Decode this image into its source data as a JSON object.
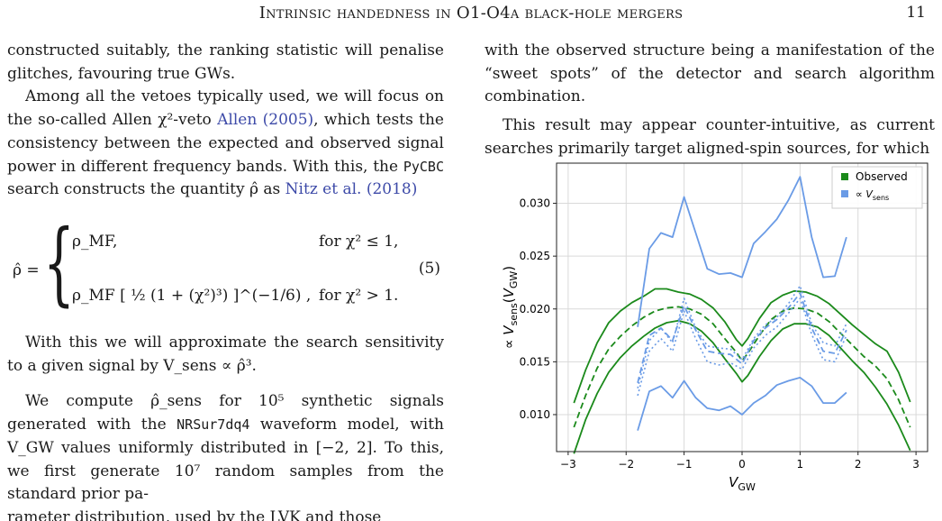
{
  "header": {
    "title": "Intrinsic handedness in O1-O4a black-hole mergers",
    "page_number": "11"
  },
  "left_column": {
    "p1": "constructed suitably, the ranking statistic will penalise glitches, favouring true GWs.",
    "p2_a": "Among all the vetoes typically used, we will focus on the so-called Allen χ²-veto ",
    "p2_cite": "Allen (2005)",
    "p2_b": ", which tests the consistency between the expected and observed signal power in different frequency bands. With this, the ",
    "p2_code": "PyCBC",
    "p2_c": " search constructs the quantity ρ̂ as ",
    "p2_cite2": "Nitz et al. (2018)",
    "equation": {
      "lhs": "ρ̂ =",
      "case1": "ρ_MF,",
      "case1_cond": "for χ² ≤ 1,",
      "case2": "ρ_MF [ ½ (1 + (χ²)³) ]^(−1/6) ,",
      "case2_cond": "for χ² > 1.",
      "number": "(5)"
    },
    "p3": "With this we will approximate the search sensitivity to a given signal by V_sens ∝ ρ̂³.",
    "p4_a": "We compute ρ̂_sens for 10⁵ synthetic signals generated with the ",
    "p4_code": "NRSur7dq4",
    "p4_b": " waveform model, with V_GW values uniformly distributed in [−2, 2]. To this, we first generate 10⁷ random samples from the standard prior pa-",
    "p4_cut": "rameter distribution, used by the LVK and those"
  },
  "right_column": {
    "p1": "with the observed structure being a manifestation of the “sweet spots” of the detector and search algorithm combination.",
    "p2": "This result may appear counter-intuitive, as current searches primarily target aligned-spin sources, for which"
  },
  "chart_data": {
    "type": "line",
    "xlabel": "V_GW",
    "ylabel": "∝ V_sens(V_GW)",
    "xlim": [
      -3.2,
      3.2
    ],
    "ylim": [
      0.0065,
      0.0338
    ],
    "xticks": [
      "−3",
      "−2",
      "−1",
      "0",
      "1",
      "2",
      "3"
    ],
    "yticks": [
      "0.010",
      "0.015",
      "0.020",
      "0.025",
      "0.030"
    ],
    "grid": true,
    "legend_position": "top-right",
    "legend": [
      {
        "label": "Observed",
        "color": "#1b8a1b"
      },
      {
        "label": "∝ V_sens",
        "color": "#6a9be6"
      }
    ],
    "series": [
      {
        "name": "Observed",
        "role": "upper",
        "color": "#1b8a1b",
        "style": "solid",
        "x": [
          -2.9,
          -2.7,
          -2.5,
          -2.3,
          -2.1,
          -1.9,
          -1.7,
          -1.5,
          -1.3,
          -1.1,
          -0.9,
          -0.7,
          -0.5,
          -0.3,
          -0.1,
          0.0,
          0.1,
          0.3,
          0.5,
          0.7,
          0.9,
          1.1,
          1.3,
          1.5,
          1.7,
          1.9,
          2.1,
          2.3,
          2.5,
          2.7,
          2.9
        ],
        "y": [
          0.0111,
          0.0142,
          0.0168,
          0.0187,
          0.0198,
          0.0206,
          0.0212,
          0.0219,
          0.0219,
          0.0216,
          0.0214,
          0.0209,
          0.0201,
          0.0188,
          0.0171,
          0.0165,
          0.0172,
          0.0191,
          0.0206,
          0.0213,
          0.0217,
          0.0216,
          0.0212,
          0.0205,
          0.0195,
          0.0185,
          0.0176,
          0.0167,
          0.016,
          0.014,
          0.0112
        ]
      },
      {
        "name": "Observed",
        "role": "median",
        "color": "#1b8a1b",
        "style": "dashed",
        "x": [
          -2.9,
          -2.7,
          -2.5,
          -2.3,
          -2.1,
          -1.9,
          -1.7,
          -1.5,
          -1.3,
          -1.1,
          -0.9,
          -0.7,
          -0.5,
          -0.3,
          -0.1,
          0.0,
          0.1,
          0.3,
          0.5,
          0.7,
          0.9,
          1.1,
          1.3,
          1.5,
          1.7,
          1.9,
          2.1,
          2.3,
          2.5,
          2.7,
          2.9
        ],
        "y": [
          0.0088,
          0.0118,
          0.0144,
          0.0162,
          0.0174,
          0.0184,
          0.0192,
          0.0198,
          0.0201,
          0.0202,
          0.02,
          0.0195,
          0.0186,
          0.0172,
          0.0159,
          0.0151,
          0.0158,
          0.0175,
          0.019,
          0.0198,
          0.0201,
          0.02,
          0.0196,
          0.0188,
          0.0177,
          0.0166,
          0.0155,
          0.0146,
          0.0134,
          0.0114,
          0.0088
        ]
      },
      {
        "name": "Observed",
        "role": "lower",
        "color": "#1b8a1b",
        "style": "solid",
        "x": [
          -2.9,
          -2.7,
          -2.5,
          -2.3,
          -2.1,
          -1.9,
          -1.7,
          -1.5,
          -1.3,
          -1.1,
          -0.9,
          -0.7,
          -0.5,
          -0.3,
          -0.1,
          0.0,
          0.1,
          0.3,
          0.5,
          0.7,
          0.9,
          1.1,
          1.3,
          1.5,
          1.7,
          1.9,
          2.1,
          2.3,
          2.5,
          2.7,
          2.9
        ],
        "y": [
          0.0063,
          0.0095,
          0.012,
          0.014,
          0.0154,
          0.0165,
          0.0174,
          0.0182,
          0.0187,
          0.0189,
          0.0186,
          0.0179,
          0.0168,
          0.0153,
          0.0139,
          0.0131,
          0.0137,
          0.0155,
          0.017,
          0.0181,
          0.0186,
          0.0186,
          0.0183,
          0.0175,
          0.0163,
          0.0151,
          0.014,
          0.0126,
          0.011,
          0.009,
          0.0066
        ]
      },
      {
        "name": "∝ V_sens",
        "role": "upper",
        "color": "#6a9be6",
        "style": "solid",
        "x": [
          -1.8,
          -1.6,
          -1.4,
          -1.2,
          -1.0,
          -0.8,
          -0.6,
          -0.4,
          -0.2,
          0.0,
          0.2,
          0.4,
          0.6,
          0.8,
          1.0,
          1.2,
          1.4,
          1.6,
          1.8
        ],
        "y": [
          0.0183,
          0.0257,
          0.0272,
          0.0268,
          0.0306,
          0.0272,
          0.0238,
          0.0233,
          0.0234,
          0.023,
          0.0262,
          0.0273,
          0.0285,
          0.0303,
          0.0325,
          0.0268,
          0.023,
          0.0231,
          0.0268
        ]
      },
      {
        "name": "∝ V_sens",
        "role": "median",
        "color": "#6a9be6",
        "style": "dashed",
        "x": [
          -1.8,
          -1.6,
          -1.4,
          -1.2,
          -1.0,
          -0.8,
          -0.6,
          -0.4,
          -0.2,
          0.0,
          0.2,
          0.4,
          0.6,
          0.8,
          1.0,
          1.2,
          1.4,
          1.6,
          1.8
        ],
        "y": [
          0.013,
          0.0175,
          0.0182,
          0.017,
          0.0203,
          0.018,
          0.016,
          0.0158,
          0.0157,
          0.0148,
          0.017,
          0.0182,
          0.019,
          0.0201,
          0.0215,
          0.0182,
          0.016,
          0.0158,
          0.018
        ]
      },
      {
        "name": "∝ V_sens",
        "role": "dotted-1",
        "color": "#6a9be6",
        "style": "dotted",
        "x": [
          -1.8,
          -1.6,
          -1.4,
          -1.2,
          -1.0,
          -0.8,
          -0.6,
          -0.4,
          -0.2,
          0.0,
          0.2,
          0.4,
          0.6,
          0.8,
          1.0,
          1.2,
          1.4,
          1.6,
          1.8
        ],
        "y": [
          0.0125,
          0.017,
          0.0182,
          0.0168,
          0.021,
          0.0182,
          0.0165,
          0.0163,
          0.0162,
          0.0152,
          0.0172,
          0.0185,
          0.0192,
          0.0205,
          0.0222,
          0.0186,
          0.0168,
          0.0165,
          0.0186
        ]
      },
      {
        "name": "∝ V_sens",
        "role": "dotted-2",
        "color": "#6a9be6",
        "style": "dotted",
        "x": [
          -1.8,
          -1.6,
          -1.4,
          -1.2,
          -1.0,
          -0.8,
          -0.6,
          -0.4,
          -0.2,
          0.0,
          0.2,
          0.4,
          0.6,
          0.8,
          1.0,
          1.2,
          1.4,
          1.6,
          1.8
        ],
        "y": [
          0.0118,
          0.016,
          0.0172,
          0.016,
          0.0198,
          0.0172,
          0.015,
          0.0147,
          0.0149,
          0.0143,
          0.0163,
          0.0175,
          0.0183,
          0.0196,
          0.021,
          0.0176,
          0.0152,
          0.015,
          0.0175
        ]
      },
      {
        "name": "∝ V_sens",
        "role": "lower",
        "color": "#6a9be6",
        "style": "solid",
        "x": [
          -1.8,
          -1.6,
          -1.4,
          -1.2,
          -1.0,
          -0.8,
          -0.6,
          -0.4,
          -0.2,
          0.0,
          0.2,
          0.4,
          0.6,
          0.8,
          1.0,
          1.2,
          1.4,
          1.6,
          1.8
        ],
        "y": [
          0.0085,
          0.0122,
          0.0127,
          0.0116,
          0.0132,
          0.0116,
          0.0106,
          0.0104,
          0.0108,
          0.01,
          0.0111,
          0.0118,
          0.0128,
          0.0132,
          0.0135,
          0.0127,
          0.0111,
          0.0111,
          0.0121
        ]
      }
    ]
  }
}
